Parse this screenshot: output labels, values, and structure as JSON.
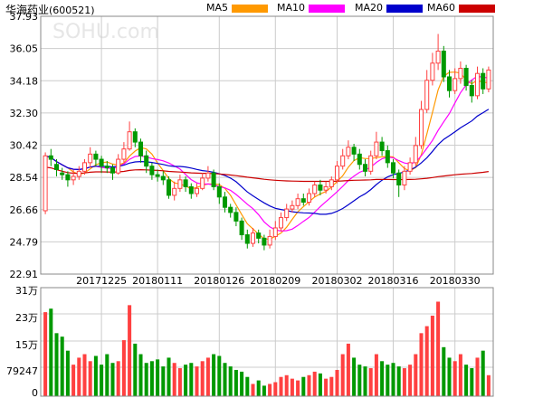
{
  "header": {
    "stock_name": "华海药业",
    "stock_code": "(600521)",
    "watermark": "SOHU.com"
  },
  "legend": [
    {
      "label": "MA5",
      "color": "#ff9900"
    },
    {
      "label": "MA10",
      "color": "#ff00ff"
    },
    {
      "label": "MA20",
      "color": "#0000cc"
    },
    {
      "label": "MA60",
      "color": "#cc0000"
    }
  ],
  "chart_data": {
    "type": "candlestick",
    "price_axis": {
      "ticks": [
        "37.93",
        "36.05",
        "34.18",
        "32.30",
        "30.42",
        "28.54",
        "26.66",
        "24.79",
        "22.91"
      ],
      "ylim": [
        22.91,
        37.93
      ]
    },
    "volume_axis": {
      "ticks": [
        "31万",
        "23万",
        "15万",
        "79247",
        "0"
      ],
      "ylim": [
        0,
        310000
      ]
    },
    "x_labels": [
      "20171225",
      "20180111",
      "20180126",
      "20180209",
      "20180302",
      "20180316",
      "20180330"
    ],
    "colors": {
      "up": "#ff4040",
      "down": "#009900",
      "grid": "#cccccc",
      "axis": "#888888"
    },
    "candles": [
      [
        26.6,
        29.8,
        26.4,
        30.0
      ],
      [
        29.8,
        29.6,
        29.2,
        30.2
      ],
      [
        29.3,
        29.0,
        28.6,
        29.6
      ],
      [
        28.8,
        28.7,
        28.4,
        29.1
      ],
      [
        28.7,
        28.4,
        28.0,
        28.9
      ],
      [
        28.4,
        28.6,
        28.1,
        29.0
      ],
      [
        28.6,
        28.9,
        28.4,
        29.2
      ],
      [
        28.9,
        29.4,
        28.7,
        29.6
      ],
      [
        29.4,
        29.9,
        29.1,
        30.3
      ],
      [
        29.9,
        29.6,
        29.2,
        30.1
      ],
      [
        29.6,
        29.2,
        28.8,
        29.8
      ],
      [
        29.2,
        29.1,
        28.8,
        29.5
      ],
      [
        29.1,
        28.8,
        28.4,
        29.3
      ],
      [
        28.8,
        29.6,
        28.7,
        29.9
      ],
      [
        29.6,
        30.2,
        29.4,
        30.6
      ],
      [
        30.2,
        31.2,
        30.1,
        31.8
      ],
      [
        31.2,
        30.6,
        30.3,
        31.4
      ],
      [
        30.6,
        29.8,
        29.4,
        30.8
      ],
      [
        29.8,
        29.2,
        28.8,
        30.1
      ],
      [
        29.2,
        28.7,
        28.4,
        29.4
      ],
      [
        28.7,
        28.6,
        28.3,
        29.0
      ],
      [
        28.6,
        28.4,
        28.1,
        28.9
      ],
      [
        28.4,
        27.5,
        27.3,
        28.6
      ],
      [
        27.5,
        27.9,
        27.2,
        28.3
      ],
      [
        27.9,
        28.4,
        27.7,
        28.7
      ],
      [
        28.4,
        28.0,
        27.7,
        28.6
      ],
      [
        28.0,
        27.6,
        27.3,
        28.2
      ],
      [
        27.6,
        27.9,
        27.4,
        28.2
      ],
      [
        27.9,
        28.5,
        27.8,
        28.8
      ],
      [
        28.5,
        28.8,
        28.3,
        29.2
      ],
      [
        28.8,
        28.0,
        27.8,
        29.0
      ],
      [
        28.0,
        27.4,
        27.0,
        28.2
      ],
      [
        27.4,
        26.8,
        26.5,
        27.7
      ],
      [
        26.8,
        26.5,
        26.2,
        27.0
      ],
      [
        26.5,
        26.0,
        25.7,
        26.8
      ],
      [
        26.0,
        25.2,
        24.9,
        26.2
      ],
      [
        25.2,
        24.7,
        24.4,
        25.5
      ],
      [
        24.7,
        25.3,
        24.5,
        25.6
      ],
      [
        25.3,
        25.0,
        24.7,
        25.5
      ],
      [
        25.0,
        24.6,
        24.3,
        25.2
      ],
      [
        24.6,
        25.1,
        24.4,
        25.5
      ],
      [
        25.1,
        25.6,
        24.9,
        26.0
      ],
      [
        25.6,
        26.2,
        25.4,
        26.5
      ],
      [
        26.2,
        26.7,
        26.0,
        27.0
      ],
      [
        26.7,
        26.9,
        26.5,
        27.2
      ],
      [
        26.9,
        27.3,
        26.7,
        27.6
      ],
      [
        27.3,
        27.1,
        26.9,
        27.6
      ],
      [
        27.1,
        27.6,
        26.9,
        27.9
      ],
      [
        27.6,
        28.1,
        27.4,
        28.3
      ],
      [
        28.1,
        27.8,
        27.5,
        28.4
      ],
      [
        27.8,
        28.0,
        27.6,
        28.3
      ],
      [
        28.0,
        28.4,
        27.8,
        28.6
      ],
      [
        28.4,
        29.2,
        28.2,
        29.5
      ],
      [
        29.2,
        29.8,
        29.0,
        30.2
      ],
      [
        29.8,
        30.3,
        29.6,
        30.7
      ],
      [
        30.3,
        29.9,
        29.5,
        30.5
      ],
      [
        29.9,
        29.3,
        29.0,
        30.2
      ],
      [
        29.3,
        28.9,
        28.6,
        29.6
      ],
      [
        28.9,
        29.8,
        28.7,
        30.1
      ],
      [
        29.8,
        30.6,
        29.6,
        31.2
      ],
      [
        30.6,
        30.1,
        29.8,
        30.9
      ],
      [
        30.1,
        29.4,
        29.1,
        30.4
      ],
      [
        29.4,
        28.8,
        28.5,
        29.6
      ],
      [
        28.8,
        28.1,
        27.4,
        29.0
      ],
      [
        28.1,
        28.9,
        27.8,
        29.2
      ],
      [
        28.9,
        29.4,
        28.7,
        29.7
      ],
      [
        29.4,
        30.4,
        29.2,
        30.9
      ],
      [
        30.4,
        32.5,
        30.2,
        33.0
      ],
      [
        32.5,
        34.2,
        32.3,
        34.8
      ],
      [
        34.2,
        35.2,
        33.9,
        35.8
      ],
      [
        35.2,
        35.9,
        34.8,
        36.9
      ],
      [
        35.9,
        34.4,
        34.1,
        36.2
      ],
      [
        34.4,
        33.6,
        33.2,
        34.8
      ],
      [
        33.6,
        34.3,
        33.4,
        34.9
      ],
      [
        34.3,
        34.9,
        34.0,
        35.3
      ],
      [
        34.9,
        33.9,
        33.6,
        35.1
      ],
      [
        33.9,
        33.3,
        32.9,
        34.2
      ],
      [
        33.3,
        34.6,
        33.1,
        35.0
      ],
      [
        34.6,
        33.7,
        33.4,
        34.9
      ],
      [
        33.7,
        34.8,
        33.5,
        35.0
      ]
    ],
    "volumes": [
      240000,
      250000,
      180000,
      170000,
      130000,
      90000,
      110000,
      120000,
      100000,
      115000,
      90000,
      120000,
      95000,
      100000,
      160000,
      260000,
      150000,
      120000,
      95000,
      100000,
      105000,
      85000,
      110000,
      95000,
      80000,
      90000,
      95000,
      85000,
      100000,
      110000,
      120000,
      115000,
      95000,
      85000,
      75000,
      70000,
      55000,
      35000,
      45000,
      30000,
      35000,
      40000,
      55000,
      60000,
      50000,
      45000,
      55000,
      60000,
      70000,
      65000,
      50000,
      55000,
      75000,
      120000,
      150000,
      110000,
      90000,
      85000,
      80000,
      120000,
      100000,
      90000,
      95000,
      85000,
      80000,
      90000,
      120000,
      180000,
      200000,
      230000,
      270000,
      140000,
      110000,
      100000,
      120000,
      90000,
      80000,
      110000,
      130000,
      60000
    ]
  }
}
